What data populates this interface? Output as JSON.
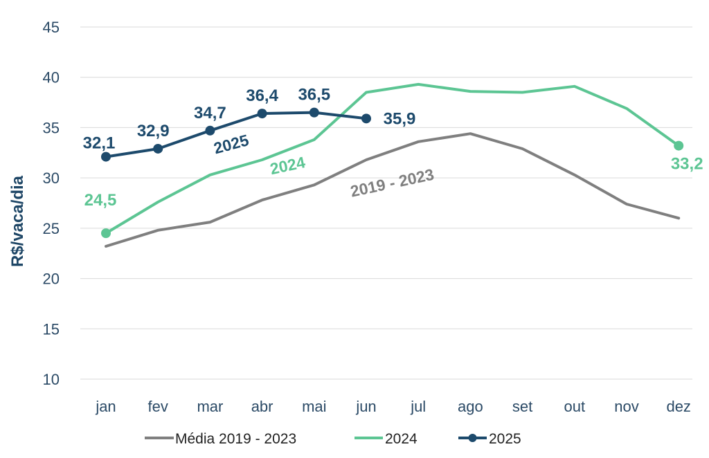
{
  "chart_data": {
    "type": "line",
    "ylabel": "R$/vaca/dia",
    "ylim": [
      10,
      45
    ],
    "yticks": [
      "10",
      "15",
      "20",
      "25",
      "30",
      "35",
      "40",
      "45"
    ],
    "grid": true,
    "legend_position": "bottom",
    "categories": [
      "jan",
      "fev",
      "mar",
      "abr",
      "mai",
      "jun",
      "jul",
      "ago",
      "set",
      "out",
      "nov",
      "dez"
    ],
    "series": [
      {
        "name": "Média 2019 - 2023",
        "inline_label": "2019 - 2023",
        "color": "#7f7f7f",
        "markers": false,
        "values": [
          23.2,
          24.8,
          25.6,
          27.8,
          29.3,
          31.8,
          33.6,
          34.4,
          32.9,
          30.3,
          27.4,
          26.0
        ]
      },
      {
        "name": "2024",
        "inline_label": "2024",
        "color": "#5cc593",
        "markers": "endpoints",
        "values": [
          24.5,
          27.6,
          30.3,
          31.8,
          33.8,
          38.5,
          39.3,
          38.6,
          38.5,
          39.1,
          36.9,
          33.2
        ],
        "data_labels": [
          {
            "index": 0,
            "text": "24,5"
          },
          {
            "index": 11,
            "text": "33,2"
          }
        ]
      },
      {
        "name": "2025",
        "inline_label": "2025",
        "color": "#1d4a6c",
        "markers": true,
        "values": [
          32.1,
          32.9,
          34.7,
          36.4,
          36.5,
          35.9,
          null,
          null,
          null,
          null,
          null,
          null
        ],
        "data_labels": [
          {
            "index": 0,
            "text": "32,1"
          },
          {
            "index": 1,
            "text": "32,9"
          },
          {
            "index": 2,
            "text": "34,7"
          },
          {
            "index": 3,
            "text": "36,4"
          },
          {
            "index": 4,
            "text": "36,5"
          },
          {
            "index": 5,
            "text": "35,9"
          }
        ]
      }
    ]
  }
}
